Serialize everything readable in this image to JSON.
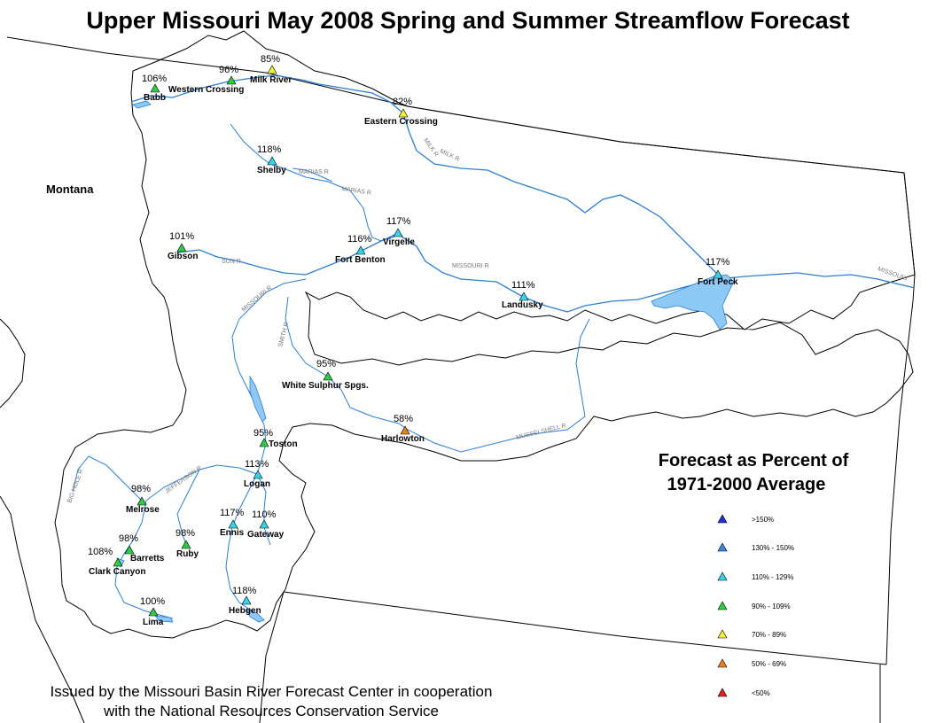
{
  "title": "Upper Missouri May 2008 Spring and Summer Streamflow Forecast",
  "state_label": "Montana",
  "credit": {
    "line1": "Issued by the Missouri Basin River Forecast Center in cooperation",
    "line2": "with the National Resources Conservation Service"
  },
  "legend": {
    "title_line1": "Forecast as Percent of",
    "title_line2": "1971-2000 Average",
    "items": [
      {
        "label": ">150%",
        "color": "#1f2fd6"
      },
      {
        "label": "130% - 150%",
        "color": "#3a86e8"
      },
      {
        "label": "110% - 129%",
        "color": "#35d4e8"
      },
      {
        "label": "90% - 109%",
        "color": "#2ecc40"
      },
      {
        "label": "70% - 89%",
        "color": "#f2f233"
      },
      {
        "label": "50% - 69%",
        "color": "#e8801c"
      },
      {
        "label": "<50%",
        "color": "#e82020"
      }
    ]
  },
  "stations": [
    {
      "name": "Babb",
      "pct": "106%",
      "category": "90% - 109%"
    },
    {
      "name": "Western Crossing",
      "pct": "96%",
      "category": "90% - 109%"
    },
    {
      "name": "Milk River",
      "pct": "85%",
      "category": "70% - 89%"
    },
    {
      "name": "Eastern Crossing",
      "pct": "82%",
      "category": "70% - 89%"
    },
    {
      "name": "Shelby",
      "pct": "118%",
      "category": "110% - 129%"
    },
    {
      "name": "Virgelle",
      "pct": "117%",
      "category": "110% - 129%"
    },
    {
      "name": "Fort Benton",
      "pct": "116%",
      "category": "110% - 129%"
    },
    {
      "name": "Gibson",
      "pct": "101%",
      "category": "90% - 109%"
    },
    {
      "name": "Landusky",
      "pct": "111%",
      "category": "110% - 129%"
    },
    {
      "name": "Fort Peck",
      "pct": "117%",
      "category": "110% - 129%"
    },
    {
      "name": "White Sulphur Spgs.",
      "pct": "95%",
      "category": "90% - 109%"
    },
    {
      "name": "Harlowton",
      "pct": "58%",
      "category": "50% - 69%"
    },
    {
      "name": "Toston",
      "pct": "95%",
      "category": "90% - 109%"
    },
    {
      "name": "Logan",
      "pct": "113%",
      "category": "110% - 129%"
    },
    {
      "name": "Melrose",
      "pct": "98%",
      "category": "90% - 109%"
    },
    {
      "name": "Ennis",
      "pct": "117%",
      "category": "110% - 129%"
    },
    {
      "name": "Gateway",
      "pct": "110%",
      "category": "110% - 129%"
    },
    {
      "name": "Barretts",
      "pct": "98%",
      "category": "90% - 109%"
    },
    {
      "name": "Ruby",
      "pct": "98%",
      "category": "90% - 109%"
    },
    {
      "name": "Clark Canyon",
      "pct": "108%",
      "category": "90% - 109%"
    },
    {
      "name": "Hebgen",
      "pct": "118%",
      "category": "110% - 129%"
    },
    {
      "name": "Lima",
      "pct": "100%",
      "category": "90% - 109%"
    }
  ],
  "river_labels": {
    "milk": "MILK R",
    "marias": "MARIAS R",
    "marias2": "MARIAS R",
    "sun": "SUN R",
    "missouri1": "MISSOURI R",
    "missouri2": "MISSOURI R",
    "missouri3": "MISSOURI",
    "smith": "SMITH R",
    "musselshell": "MUSSELSHELL R",
    "jefferson": "JEFFERSON R",
    "bighole": "BIG HOLE R"
  }
}
